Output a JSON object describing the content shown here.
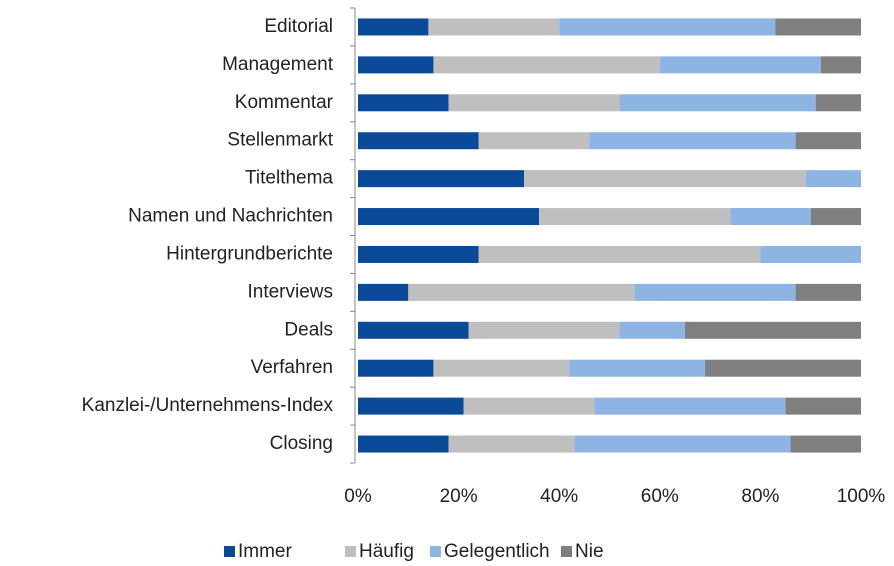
{
  "chart_data": {
    "type": "stacked_bar_horizontal",
    "categories": [
      "Editorial",
      "Management",
      "Kommentar",
      "Stellenmarkt",
      "Titelthema",
      "Namen und Nachrichten",
      "Hintergrundberichte",
      "Interviews",
      "Deals",
      "Verfahren",
      "Kanzlei-/Unternehmens-Index",
      "Closing"
    ],
    "series": [
      {
        "name": "Immer",
        "color": "#0b4a98",
        "values": [
          14,
          15,
          18,
          24,
          33,
          36,
          24,
          10,
          22,
          15,
          21,
          18
        ]
      },
      {
        "name": "Häufig",
        "color": "#bfbfbf",
        "values": [
          26,
          45,
          34,
          22,
          56,
          38,
          56,
          45,
          30,
          27,
          26,
          25
        ]
      },
      {
        "name": "Gelegentlich",
        "color": "#8eb4e3",
        "values": [
          43,
          32,
          39,
          41,
          11,
          16,
          20,
          32,
          13,
          27,
          38,
          43
        ]
      },
      {
        "name": "Nie",
        "color": "#7f7f7f",
        "values": [
          17,
          8,
          9,
          13,
          0,
          10,
          0,
          13,
          35,
          31,
          15,
          14
        ]
      }
    ],
    "xlim": [
      0,
      100
    ],
    "xticks": [
      {
        "value": 0,
        "label": "0%"
      },
      {
        "value": 20,
        "label": "20%"
      },
      {
        "value": 40,
        "label": "40%"
      },
      {
        "value": 60,
        "label": "60%"
      },
      {
        "value": 80,
        "label": "80%"
      },
      {
        "value": 100,
        "label": "100%"
      }
    ],
    "legend": "bottom"
  }
}
